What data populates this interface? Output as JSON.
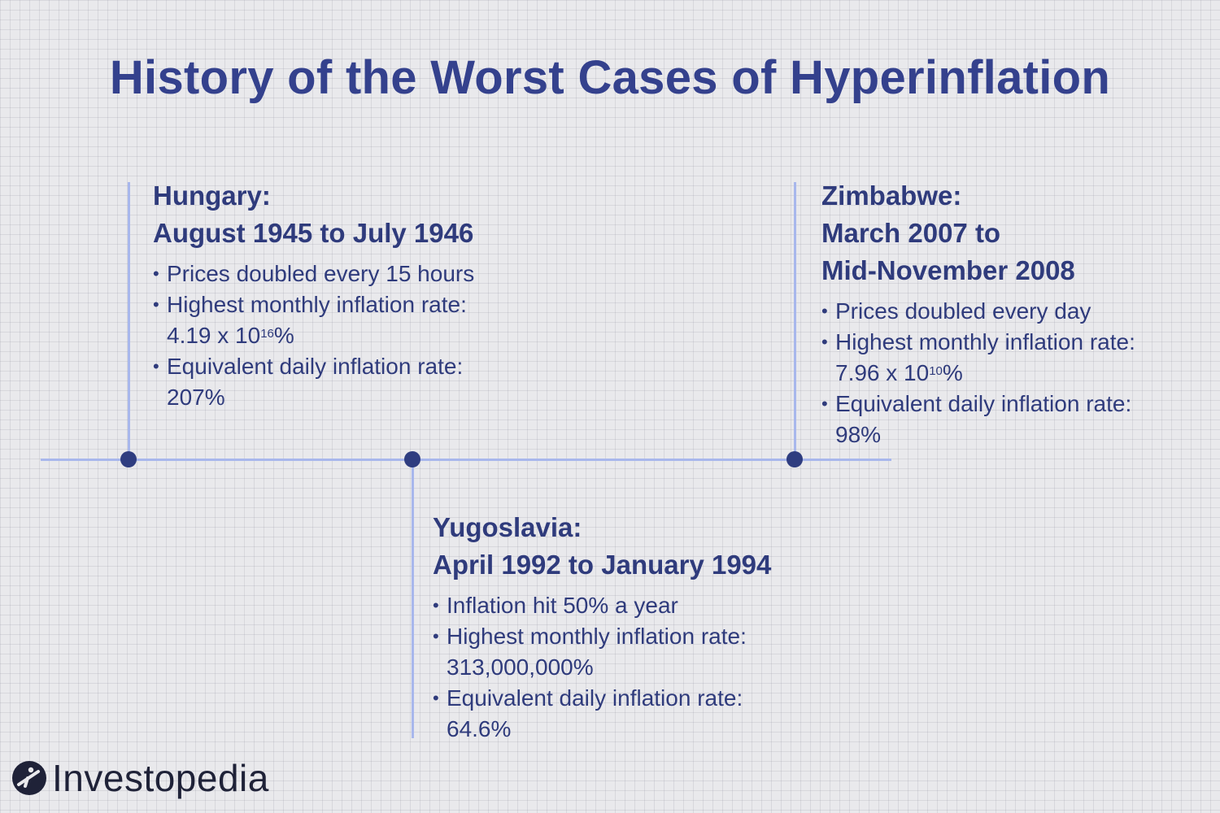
{
  "title": "History of the Worst Cases of Hyperinflation",
  "colors": {
    "line": "#a8b7ec",
    "dot": "#2f3d80",
    "text": "#2f3b7c"
  },
  "cases": {
    "hungary": {
      "country": "Hungary:",
      "period": "August 1945 to July 1946",
      "bullets": {
        "b1": "Prices doubled every 15 hours",
        "b2": "Highest monthly inflation rate:",
        "b2_base": "4.19 x 10",
        "b2_exp": "16",
        "b2_pct": "%",
        "b3": "Equivalent daily inflation rate:",
        "b3_value": "207%"
      }
    },
    "yugoslavia": {
      "country": "Yugoslavia:",
      "period": "April 1992 to January 1994",
      "bullets": {
        "b1": "Inflation hit 50% a year",
        "b2": "Highest monthly inflation rate:",
        "b2_value": "313,000,000%",
        "b3": "Equivalent daily inflation rate:",
        "b3_value": "64.6%"
      }
    },
    "zimbabwe": {
      "country": "Zimbabwe:",
      "period_line1": "March 2007 to",
      "period_line2": "Mid-November 2008",
      "bullets": {
        "b1": "Prices doubled every day",
        "b2": "Highest monthly inflation rate:",
        "b2_base": "7.96 x 10",
        "b2_exp": "10",
        "b2_pct": "%",
        "b3": "Equivalent daily inflation rate:",
        "b3_value": "98%"
      }
    }
  },
  "bullet_char": "•",
  "brand": {
    "name": "Investopedia",
    "icon": "investopedia-logo-icon"
  }
}
